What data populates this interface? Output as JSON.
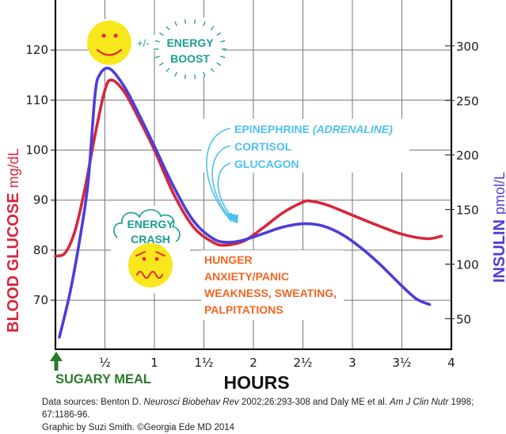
{
  "chart_data": {
    "type": "line",
    "title": "",
    "xlabel": "HOURS",
    "xlim": [
      0,
      4
    ],
    "x_ticks": [
      {
        "value": 0.5,
        "label": "½",
        "whole": "",
        "frac": "½"
      },
      {
        "value": 1,
        "label": "1",
        "whole": "1",
        "frac": ""
      },
      {
        "value": 1.5,
        "label": "1½",
        "whole": "1",
        "frac": "½"
      },
      {
        "value": 2,
        "label": "2",
        "whole": "2",
        "frac": ""
      },
      {
        "value": 2.5,
        "label": "2½",
        "whole": "2",
        "frac": "½"
      },
      {
        "value": 3,
        "label": "3",
        "whole": "3",
        "frac": ""
      },
      {
        "value": 3.5,
        "label": "3½",
        "whole": "3",
        "frac": "½"
      },
      {
        "value": 4,
        "label": "4",
        "whole": "4",
        "frac": ""
      }
    ],
    "grid": true,
    "left_axis": {
      "label_bold": "BLOOD GLUCOSE",
      "label_unit": "mg/dL",
      "color": "#d7263d",
      "ylim": [
        60.2,
        130
      ],
      "ticks": [
        70,
        80,
        90,
        100,
        110,
        120
      ]
    },
    "right_axis": {
      "label_bold": "INSULIN",
      "label_unit": "pmol/L",
      "color": "#4b3fd8",
      "ylim": [
        22,
        342
      ],
      "ticks": [
        50,
        100,
        150,
        200,
        250,
        300
      ]
    },
    "series": [
      {
        "name": "Blood glucose",
        "axis": "left",
        "color": "#d7263d",
        "x": [
          0.0,
          0.1,
          0.2,
          0.3,
          0.4,
          0.5,
          0.57,
          0.7,
          0.85,
          1.0,
          1.2,
          1.4,
          1.6,
          1.72,
          1.9,
          2.1,
          2.3,
          2.5,
          2.58,
          2.75,
          3.0,
          3.25,
          3.5,
          3.75,
          3.9
        ],
        "values": [
          78.8,
          79.5,
          84,
          92.5,
          103,
          112,
          114,
          111.5,
          106,
          100,
          91,
          84.5,
          81.5,
          81,
          81.8,
          84.5,
          87.5,
          89.6,
          89.8,
          89,
          87,
          85,
          83.2,
          82.3,
          82.8
        ]
      },
      {
        "name": "Insulin",
        "axis": "right",
        "color": "#4b3fd8",
        "x": [
          0.04,
          0.15,
          0.25,
          0.33,
          0.4,
          0.45,
          0.55,
          0.7,
          0.85,
          1.0,
          1.2,
          1.4,
          1.6,
          1.75,
          1.9,
          2.1,
          2.3,
          2.5,
          2.7,
          2.9,
          3.1,
          3.3,
          3.5,
          3.65,
          3.78
        ],
        "values": [
          33,
          75,
          125,
          175,
          255,
          274,
          279,
          262,
          236,
          208,
          170,
          139,
          123,
          120,
          122,
          128,
          134,
          137,
          135,
          127,
          114,
          98,
          80,
          68,
          63
        ]
      }
    ],
    "annotations": {
      "energy_boost": {
        "prefix": "+/-",
        "line1": "ENERGY",
        "line2": "BOOST",
        "color": "#1a9e8f"
      },
      "energy_crash": {
        "line1": "ENERGY",
        "line2": "CRASH",
        "color": "#1a9e8f"
      },
      "hormones": {
        "color": "#4fc0f0",
        "items": [
          {
            "text": "EPINEPHRINE ",
            "italic": "(ADRENALINE)"
          },
          {
            "text": "CORTISOL",
            "italic": ""
          },
          {
            "text": "GLUCAGON",
            "italic": ""
          }
        ]
      },
      "symptoms": {
        "color": "#f26522",
        "lines": [
          "HUNGER",
          "ANXIETY/PANIC",
          "WEAKNESS, SWEATING,",
          "PALPITATIONS"
        ]
      },
      "meal": {
        "label": "SUGARY MEAL",
        "color": "#2a7a2a"
      },
      "happy_face": {
        "color": "#f8e71c",
        "feature_color": "#e03030"
      },
      "worried_face": {
        "color": "#f8e71c",
        "feature_color": "#e03030"
      }
    }
  },
  "footer": {
    "sources_prefix": "Data sources: Benton D. ",
    "journal1": "Neurosci Biobehav Rev",
    "ref1": " 2002;26:293-308 and Daly ME et al. ",
    "journal2": "Am J Clin Nutr",
    "ref2": " 1998; 67:1186-96.",
    "credit": "Graphic by Suzi Smith. ©Georgia Ede MD 2014"
  }
}
